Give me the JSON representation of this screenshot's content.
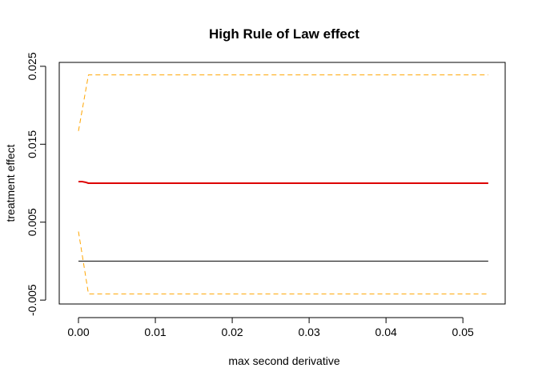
{
  "chart_data": {
    "type": "line",
    "title": "High Rule of Law effect",
    "xlabel": "max second derivative",
    "ylabel": "treatment effect",
    "xlim": [
      -0.0025,
      0.0555
    ],
    "ylim": [
      -0.0055,
      0.0255
    ],
    "x_ticks": [
      0.0,
      0.01,
      0.02,
      0.03,
      0.04,
      0.05
    ],
    "x_tick_labels": [
      "0.00",
      "0.01",
      "0.02",
      "0.03",
      "0.04",
      "0.05"
    ],
    "y_ticks": [
      -0.005,
      0.005,
      0.015,
      0.025
    ],
    "y_tick_labels": [
      "-0.005",
      "0.005",
      "0.015",
      "0.025"
    ],
    "grid": false,
    "legend": "none",
    "series": [
      {
        "role": "estimate",
        "color": "#dd0000",
        "style": "solid",
        "x": [
          0.0,
          0.0005,
          0.001,
          0.0013,
          0.0533
        ],
        "y": [
          0.0102,
          0.0102,
          0.0101,
          0.01,
          0.01
        ]
      },
      {
        "role": "upper-bound",
        "color": "#ffa500",
        "style": "dashed",
        "x": [
          0.0,
          0.0013,
          0.0533
        ],
        "y": [
          0.0167,
          0.0239,
          0.0239
        ]
      },
      {
        "role": "lower-bound",
        "color": "#ffa500",
        "style": "dashed",
        "x": [
          0.0,
          0.0013,
          0.0533
        ],
        "y": [
          0.0038,
          -0.0042,
          -0.0042
        ]
      },
      {
        "role": "zero-reference",
        "color": "#000000",
        "style": "solid",
        "x": [
          0.0,
          0.0533
        ],
        "y": [
          0.0,
          0.0
        ]
      }
    ]
  }
}
